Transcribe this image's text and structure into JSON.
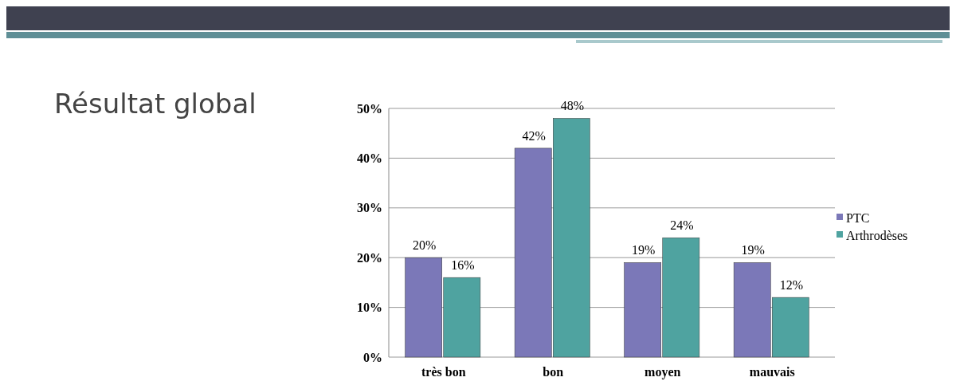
{
  "chart_data": {
    "type": "bar",
    "title": "Résultat global",
    "categories": [
      "très bon",
      "bon",
      "moyen",
      "mauvais"
    ],
    "series": [
      {
        "name": "PTC",
        "color": "#7b78b8",
        "values": [
          20,
          42,
          19,
          19
        ],
        "value_labels": [
          "20%",
          "42%",
          "19%",
          "19%"
        ]
      },
      {
        "name": "Arthrodèses",
        "color": "#4fa3a0",
        "values": [
          16,
          48,
          24,
          12
        ],
        "value_labels": [
          "16%",
          "48%",
          "24%",
          "12%"
        ]
      }
    ],
    "ylim": [
      0,
      50
    ],
    "yticks": [
      {
        "value": 0,
        "label": "0%"
      },
      {
        "value": 10,
        "label": "10%"
      },
      {
        "value": 20,
        "label": "20%"
      },
      {
        "value": 30,
        "label": "30%"
      },
      {
        "value": 40,
        "label": "40%"
      },
      {
        "value": 50,
        "label": "50%"
      }
    ],
    "grid": "y",
    "legend": "right"
  }
}
